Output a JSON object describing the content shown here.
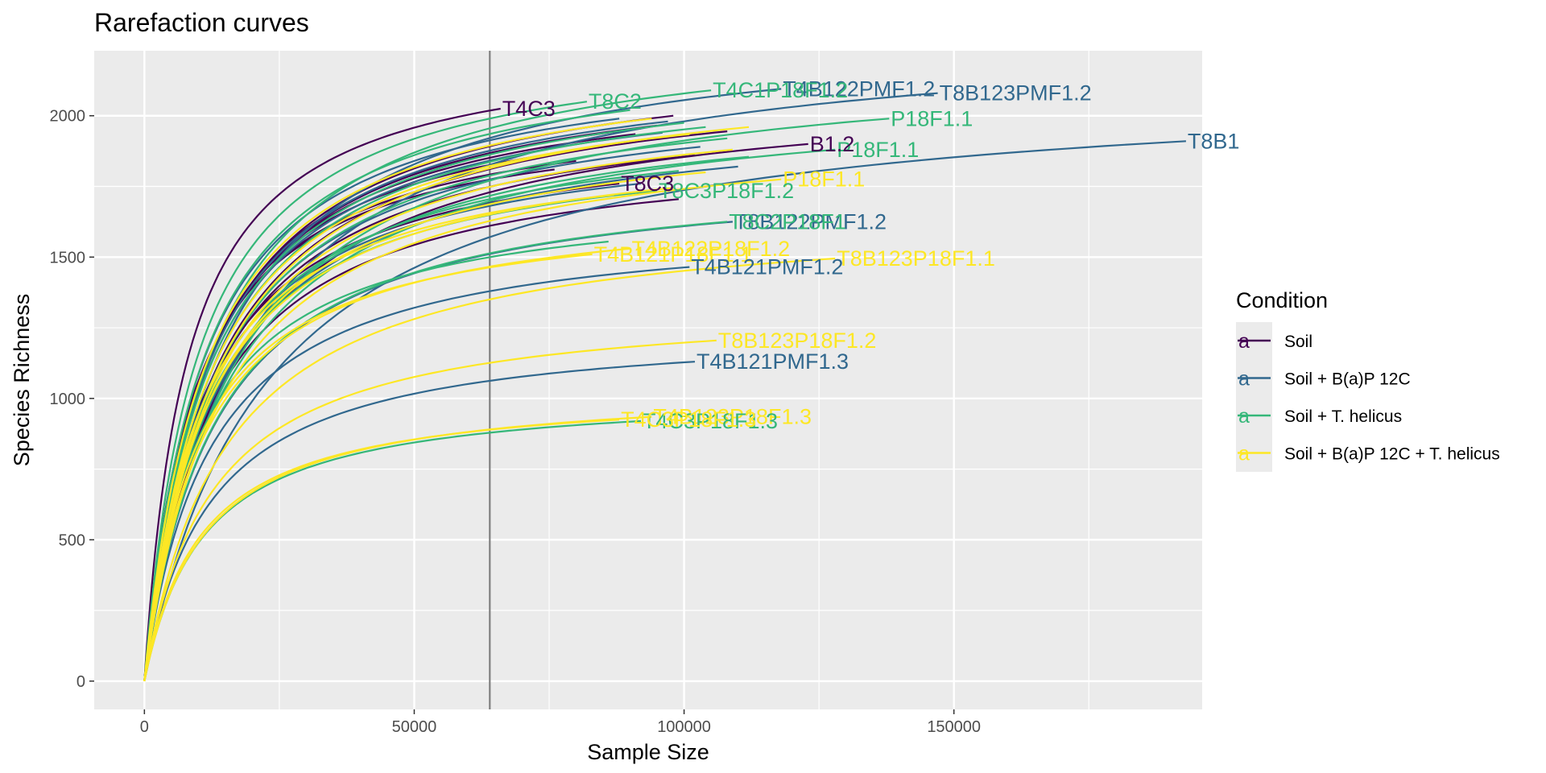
{
  "chart_data": {
    "type": "line",
    "title": "Rarefaction curves",
    "xlabel": "Sample Size",
    "ylabel": "Species Richness",
    "xlim": [
      -9300,
      196000
    ],
    "ylim": [
      -100,
      2230
    ],
    "x_ticks": [
      0,
      50000,
      100000,
      150000
    ],
    "x_tick_labels": [
      "0",
      "50000",
      "100000",
      "150000"
    ],
    "y_ticks": [
      0,
      500,
      1000,
      1500,
      2000
    ],
    "y_tick_labels": [
      "0",
      "500",
      "1000",
      "1500",
      "2000"
    ],
    "grid": true,
    "vline_x": 64000,
    "legend": {
      "title": "Condition",
      "placement": "right",
      "key_glyph": "a",
      "entries": [
        {
          "name": "Soil",
          "color": "#440154"
        },
        {
          "name": "Soil + B(a)P 12C",
          "color": "#31688E"
        },
        {
          "name": "Soil + T. helicus",
          "color": "#35B779"
        },
        {
          "name": "Soil + B(a)P 12C + T. helicus",
          "color": "#FDE725"
        }
      ]
    },
    "series": [
      {
        "label": "T8B123PMF1.2",
        "group": 1,
        "max_x": 147000,
        "final": 2080
      },
      {
        "label": "T4B122PMF1.2",
        "group": 1,
        "max_x": 118000,
        "final": 2095
      },
      {
        "label": "T4C1P18F1.2",
        "group": 2,
        "max_x": 105000,
        "final": 2090
      },
      {
        "label": "T4C3",
        "group": 0,
        "max_x": 66000,
        "final": 2025
      },
      {
        "label": "T8C2",
        "group": 2,
        "max_x": 82000,
        "final": 2050
      },
      {
        "label": "T8B1",
        "group": 1,
        "max_x": 193000,
        "final": 1910
      },
      {
        "label": "P18F1.1",
        "group": 2,
        "max_x": 138000,
        "final": 1990
      },
      {
        "label": "P18F1.1",
        "group": 2,
        "max_x": 128000,
        "final": 1880
      },
      {
        "label": "B1.2",
        "group": 0,
        "max_x": 123000,
        "final": 1900
      },
      {
        "label": "P18F1.1",
        "group": 3,
        "max_x": 118000,
        "final": 1775
      },
      {
        "label": "T8C3P18F1.2",
        "group": 2,
        "max_x": 95000,
        "final": 1735
      },
      {
        "label": "T8C3",
        "group": 0,
        "max_x": 88000,
        "final": 1760
      },
      {
        "label": "T8B122PMF1.2",
        "group": 1,
        "max_x": 109000,
        "final": 1625
      },
      {
        "label": "T8C2P18F1",
        "group": 2,
        "max_x": 108000,
        "final": 1625
      },
      {
        "label": "T4B122P18F1.2",
        "group": 3,
        "max_x": 90000,
        "final": 1530
      },
      {
        "label": "T4B121P18F1.1",
        "group": 3,
        "max_x": 83000,
        "final": 1510
      },
      {
        "label": "T8B123P18F1.1",
        "group": 3,
        "max_x": 128000,
        "final": 1495
      },
      {
        "label": "T4B121PMF1.2",
        "group": 1,
        "max_x": 101000,
        "final": 1465
      },
      {
        "label": "T8B123P18F1.2",
        "group": 3,
        "max_x": 106000,
        "final": 1205
      },
      {
        "label": "T4B121PMF1.3",
        "group": 1,
        "max_x": 102000,
        "final": 1130
      },
      {
        "label": "T4B123P18F1.3",
        "group": 3,
        "max_x": 94000,
        "final": 935
      },
      {
        "label": "T4C3P18F1.3",
        "group": 2,
        "max_x": 92000,
        "final": 920
      },
      {
        "label": "T4C3P18F1.3",
        "group": 3,
        "max_x": 88000,
        "final": 925
      },
      {
        "label": "",
        "group": 0,
        "max_x": 98000,
        "final": 2000
      },
      {
        "label": "",
        "group": 0,
        "max_x": 95000,
        "final": 1965
      },
      {
        "label": "",
        "group": 0,
        "max_x": 91000,
        "final": 1935
      },
      {
        "label": "",
        "group": 0,
        "max_x": 85000,
        "final": 1890
      },
      {
        "label": "",
        "group": 0,
        "max_x": 80000,
        "final": 1840
      },
      {
        "label": "",
        "group": 0,
        "max_x": 76000,
        "final": 1810
      },
      {
        "label": "",
        "group": 0,
        "max_x": 102000,
        "final": 1860
      },
      {
        "label": "",
        "group": 0,
        "max_x": 99000,
        "final": 1705
      },
      {
        "label": "",
        "group": 0,
        "max_x": 92000,
        "final": 1955
      },
      {
        "label": "",
        "group": 0,
        "max_x": 108000,
        "final": 1945
      },
      {
        "label": "",
        "group": 1,
        "max_x": 88000,
        "final": 1990
      },
      {
        "label": "",
        "group": 1,
        "max_x": 96000,
        "final": 1940
      },
      {
        "label": "",
        "group": 1,
        "max_x": 103000,
        "final": 1890
      },
      {
        "label": "",
        "group": 1,
        "max_x": 110000,
        "final": 1820
      },
      {
        "label": "",
        "group": 1,
        "max_x": 92000,
        "final": 1760
      },
      {
        "label": "",
        "group": 1,
        "max_x": 97000,
        "final": 1980
      },
      {
        "label": "",
        "group": 2,
        "max_x": 90000,
        "final": 2020
      },
      {
        "label": "",
        "group": 2,
        "max_x": 100000,
        "final": 1975
      },
      {
        "label": "",
        "group": 2,
        "max_x": 108000,
        "final": 1920
      },
      {
        "label": "",
        "group": 2,
        "max_x": 112000,
        "final": 1855
      },
      {
        "label": "",
        "group": 2,
        "max_x": 99000,
        "final": 1805
      },
      {
        "label": "",
        "group": 2,
        "max_x": 86000,
        "final": 1555
      },
      {
        "label": "",
        "group": 2,
        "max_x": 104000,
        "final": 1960
      },
      {
        "label": "",
        "group": 3,
        "max_x": 94000,
        "final": 1990
      },
      {
        "label": "",
        "group": 3,
        "max_x": 101000,
        "final": 1935
      },
      {
        "label": "",
        "group": 3,
        "max_x": 109000,
        "final": 1880
      },
      {
        "label": "",
        "group": 3,
        "max_x": 104000,
        "final": 1800
      },
      {
        "label": "",
        "group": 3,
        "max_x": 98000,
        "final": 1745
      },
      {
        "label": "",
        "group": 3,
        "max_x": 112000,
        "final": 1960
      },
      {
        "label": "",
        "group": 3,
        "max_x": 87000,
        "final": 1720
      }
    ]
  }
}
